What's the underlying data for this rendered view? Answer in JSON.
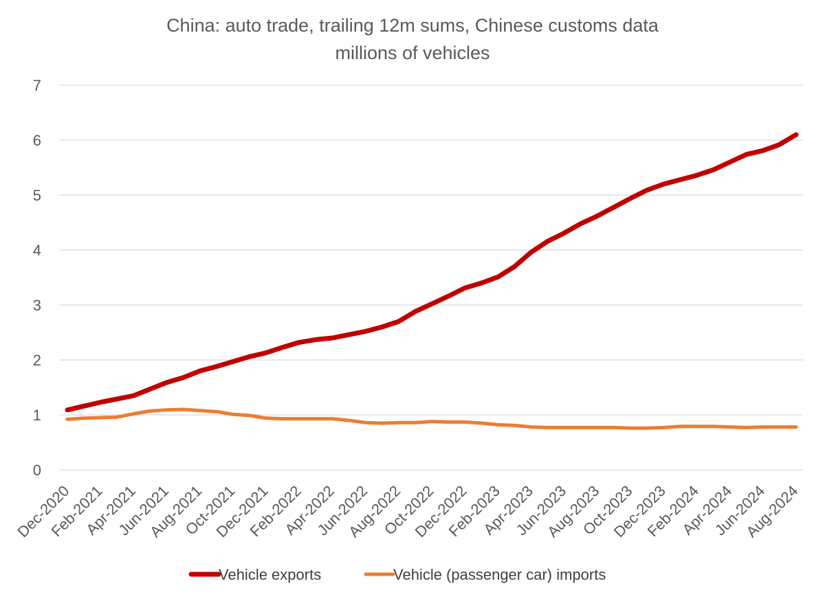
{
  "chart_data": {
    "type": "line",
    "title": "China: auto trade, trailing 12m sums, Chinese customs data",
    "subtitle": "millions of vehicles",
    "xlabel": "",
    "ylabel": "",
    "ylim": [
      0,
      7
    ],
    "yticks": [
      "0",
      "1",
      "2",
      "3",
      "4",
      "5",
      "6",
      "7"
    ],
    "grid": true,
    "legend_position": "bottom",
    "x": [
      "Dec-2020",
      "Jan-2021",
      "Feb-2021",
      "Mar-2021",
      "Apr-2021",
      "May-2021",
      "Jun-2021",
      "Jul-2021",
      "Aug-2021",
      "Sep-2021",
      "Oct-2021",
      "Nov-2021",
      "Dec-2021",
      "Jan-2022",
      "Feb-2022",
      "Mar-2022",
      "Apr-2022",
      "May-2022",
      "Jun-2022",
      "Jul-2022",
      "Aug-2022",
      "Sep-2022",
      "Oct-2022",
      "Nov-2022",
      "Dec-2022",
      "Jan-2023",
      "Feb-2023",
      "Mar-2023",
      "Apr-2023",
      "May-2023",
      "Jun-2023",
      "Jul-2023",
      "Aug-2023",
      "Sep-2023",
      "Oct-2023",
      "Nov-2023",
      "Dec-2023",
      "Jan-2024",
      "Feb-2024",
      "Mar-2024",
      "Apr-2024",
      "May-2024",
      "Jun-2024",
      "Jul-2024",
      "Aug-2024"
    ],
    "xtick_labels": [
      "Dec-2020",
      "Feb-2021",
      "Apr-2021",
      "Jun-2021",
      "Aug-2021",
      "Oct-2021",
      "Dec-2021",
      "Feb-2022",
      "Apr-2022",
      "Jun-2022",
      "Aug-2022",
      "Oct-2022",
      "Dec-2022",
      "Feb-2023",
      "Apr-2023",
      "Jun-2023",
      "Aug-2023",
      "Oct-2023",
      "Dec-2023",
      "Feb-2024",
      "Apr-2024",
      "Jun-2024",
      "Aug-2024"
    ],
    "series": [
      {
        "name": "Vehicle exports",
        "color": "#c00000",
        "values": [
          1.09,
          1.16,
          1.23,
          1.29,
          1.35,
          1.47,
          1.59,
          1.68,
          1.8,
          1.88,
          1.97,
          2.06,
          2.13,
          2.23,
          2.32,
          2.37,
          2.4,
          2.46,
          2.52,
          2.6,
          2.7,
          2.88,
          3.02,
          3.16,
          3.31,
          3.4,
          3.51,
          3.7,
          3.96,
          4.16,
          4.31,
          4.48,
          4.62,
          4.78,
          4.94,
          5.09,
          5.2,
          5.28,
          5.36,
          5.46,
          5.6,
          5.74,
          5.81,
          5.92,
          6.1
        ]
      },
      {
        "name": "Vehicle (passenger car) imports",
        "color": "#ed7d31",
        "values": [
          0.92,
          0.94,
          0.95,
          0.96,
          1.02,
          1.07,
          1.09,
          1.1,
          1.08,
          1.06,
          1.01,
          0.99,
          0.94,
          0.93,
          0.93,
          0.93,
          0.93,
          0.9,
          0.86,
          0.85,
          0.86,
          0.86,
          0.88,
          0.87,
          0.87,
          0.85,
          0.82,
          0.81,
          0.78,
          0.77,
          0.77,
          0.77,
          0.77,
          0.77,
          0.76,
          0.76,
          0.77,
          0.79,
          0.79,
          0.79,
          0.78,
          0.77,
          0.78,
          0.78,
          0.78
        ]
      }
    ]
  }
}
